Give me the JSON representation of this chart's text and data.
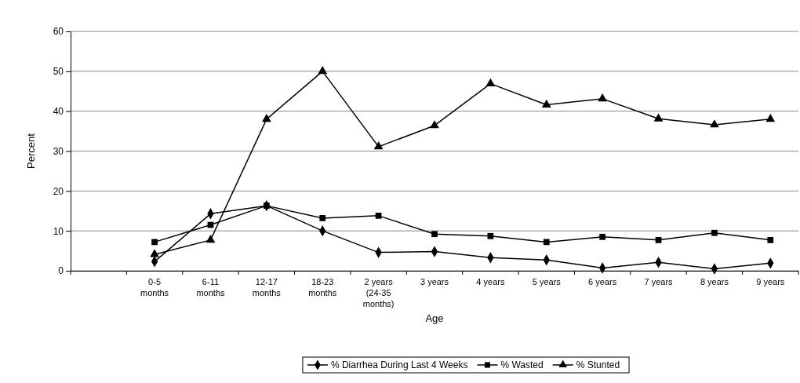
{
  "chart_data": {
    "type": "line",
    "xlabel": "Age",
    "ylabel": "Percent",
    "categories": [
      null,
      "0-5 months",
      "6-11 months",
      "12-17 months",
      "18-23 months",
      "2 years (24-35 months)",
      "3 years",
      "4 years",
      "5 years",
      "6 years",
      "7 years",
      "8 years",
      "9 years"
    ],
    "series": [
      {
        "name": "% Diarrhea During Last 4 Weeks",
        "color": "#000000",
        "marker": "diamond",
        "values": [
          null,
          2.3,
          14.3,
          16.3,
          10,
          4.6,
          4.8,
          3.3,
          2.7,
          0.7,
          2.1,
          0.5,
          1.9
        ]
      },
      {
        "name": "% Wasted",
        "color": "#000000",
        "marker": "square",
        "values": [
          null,
          7.2,
          11.5,
          16.3,
          13.2,
          13.8,
          9.2,
          8.7,
          7.2,
          8.5,
          7.7,
          9.5,
          7.7
        ]
      },
      {
        "name": "% Stunted",
        "color": "#000000",
        "marker": "triangle",
        "values": [
          null,
          4.1,
          7.7,
          38,
          50,
          31.1,
          36.4,
          46.9,
          41.6,
          43.1,
          38.1,
          36.6,
          38
        ]
      }
    ],
    "ylim": [
      0,
      60
    ],
    "yticks": [
      0,
      10,
      20,
      30,
      40,
      50,
      60
    ],
    "grid": "y",
    "legend": "bottom",
    "line_style": "solid"
  }
}
